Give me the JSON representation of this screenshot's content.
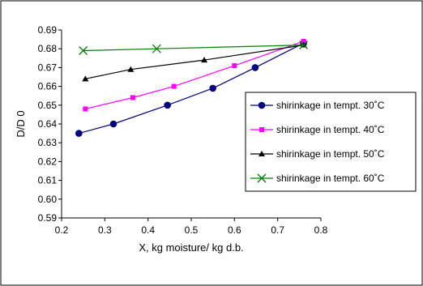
{
  "chart_data": {
    "type": "scatter",
    "title": "",
    "xlabel": "X, kg  moisture/ kg d.b.",
    "ylabel": "D/D 0",
    "xlim": [
      0.2,
      0.8
    ],
    "ylim": [
      0.59,
      0.69
    ],
    "xticks": [
      0.2,
      0.3,
      0.4,
      0.5,
      0.6,
      0.7,
      0.8
    ],
    "xtick_labels": [
      "0.2",
      "0.3",
      "0.4",
      "0.5",
      "0.6",
      "0.7",
      "0.8"
    ],
    "yticks": [
      0.59,
      0.6,
      0.61,
      0.62,
      0.63,
      0.64,
      0.65,
      0.66,
      0.67,
      0.68,
      0.69
    ],
    "ytick_labels": [
      "0.59",
      "0.60",
      "0.61",
      "0.62",
      "0.63",
      "0.64",
      "0.65",
      "0.66",
      "0.67",
      "0.68",
      "0.69"
    ],
    "grid": false,
    "legend_position": "right",
    "series": [
      {
        "name": "shirinkage in tempt. 30˚C",
        "color": "#000080",
        "marker": "circle",
        "x": [
          0.24,
          0.32,
          0.445,
          0.55,
          0.648,
          0.76
        ],
        "y": [
          0.635,
          0.64,
          0.65,
          0.659,
          0.67,
          0.683
        ]
      },
      {
        "name": "shirinkage in tempt. 40˚C",
        "color": "#FF00FF",
        "marker": "square",
        "x": [
          0.255,
          0.365,
          0.46,
          0.6,
          0.76
        ],
        "y": [
          0.648,
          0.654,
          0.66,
          0.671,
          0.684
        ]
      },
      {
        "name": "shirinkage in tempt. 50˚C",
        "color": "#000000",
        "marker": "triangle",
        "x": [
          0.255,
          0.36,
          0.53,
          0.76
        ],
        "y": [
          0.664,
          0.669,
          0.674,
          0.682
        ]
      },
      {
        "name": "shirinkage in tempt. 60˚C",
        "color": "#008000",
        "marker": "x",
        "x": [
          0.25,
          0.42,
          0.76
        ],
        "y": [
          0.679,
          0.68,
          0.682
        ]
      }
    ]
  }
}
